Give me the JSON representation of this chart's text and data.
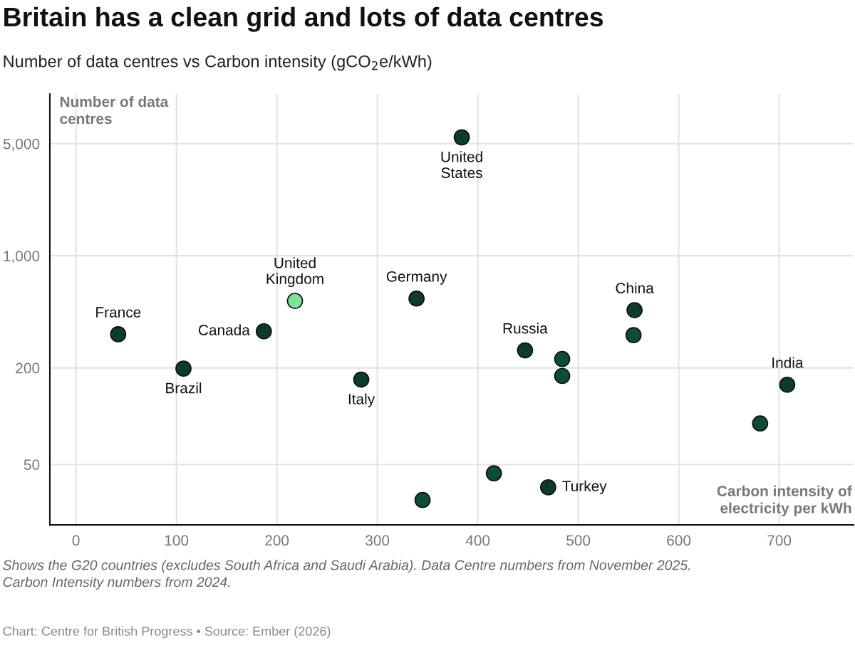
{
  "chart_data": {
    "type": "scatter",
    "title": "Britain has a clean grid and lots of data centres",
    "subtitle": "Number of data centres vs Carbon intensity (gCO$_{2}$e/kWh)",
    "xlabel": "Carbon intensity of electricity per kWh",
    "ylabel": "Number of data centres",
    "series": [
      {
        "x": [
          42,
          107,
          187,
          218,
          284,
          339,
          384,
          447,
          484,
          484,
          556,
          555,
          708,
          681,
          416,
          470,
          345
        ],
        "values": [
          324,
          198,
          338,
          523,
          169,
          541,
          5470,
          257,
          227,
          178,
          458,
          320,
          157,
          90,
          44,
          36,
          30
        ],
        "colors": [
          "#0d3b2e",
          "#0d3b2e",
          "#0d3b2e",
          "#7be495",
          "#0d3b2e",
          "#0d3b2e",
          "#0d3b2e",
          "#0d3b2e",
          "#0b4d38",
          "#0b4d38",
          "#0d3b2e",
          "#0b4d38",
          "#0d3b2e",
          "#0b4d38",
          "#0b4d38",
          "#0d3b2e",
          "#0b4d38"
        ]
      }
    ],
    "marker": "circle",
    "log": "y",
    "xlim": [
      -26,
      774
    ],
    "ylim": [
      21,
      10200
    ],
    "xticks": [
      0,
      100,
      200,
      300,
      400,
      500,
      600,
      700
    ],
    "yticks": [
      50,
      200,
      {
        "value": 1000,
        "label": "1,000"
      },
      {
        "value": 5000,
        "label": "5,000"
      }
    ],
    "grid": true,
    "annotations": [
      {
        "text": "France",
        "x": 42,
        "y": 324
      },
      {
        "text": "Brazil",
        "x": 107,
        "y": 198
      },
      {
        "text": "Canada",
        "x": 187,
        "y": 338
      },
      {
        "text": "United\nKingdom",
        "x": 218,
        "y": 523
      },
      {
        "text": "Italy",
        "x": 284,
        "y": 169
      },
      {
        "text": "Germany",
        "x": 339,
        "y": 541
      },
      {
        "text": "United\nStates",
        "x": 384,
        "y": 5470
      },
      {
        "text": "Russia",
        "x": 447,
        "y": 257
      },
      {
        "text": "China",
        "x": 556,
        "y": 458
      },
      {
        "text": "India",
        "x": 708,
        "y": 157
      },
      {
        "text": "Turkey",
        "x": 470,
        "y": 36
      },
      "Shows the G20 countries (excludes South Africa and Saudi Arabia). Data Centre numbers from November 2025.\nCarbon Intensity numbers from 2024.",
      "Chart: Centre for British Progress • Source: Ember (2026)"
    ]
  }
}
